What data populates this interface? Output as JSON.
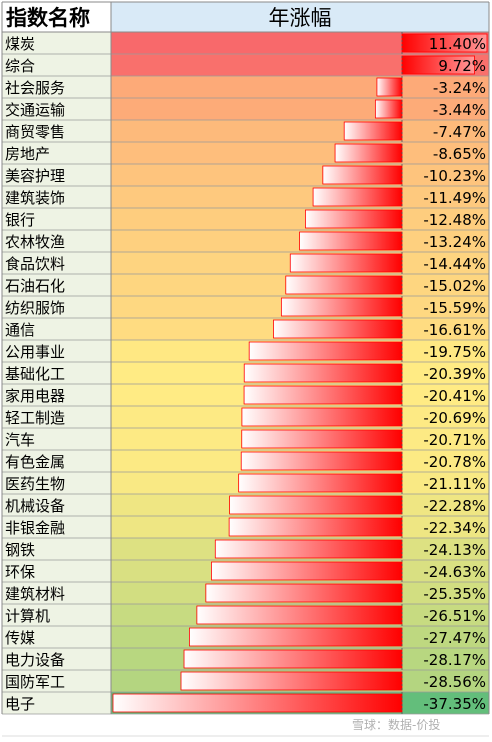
{
  "chart_data": {
    "type": "table",
    "columns": [
      "指数名称",
      "年涨幅"
    ],
    "rows": [
      {
        "name": "煤炭",
        "value": 11.4,
        "label": "11.40%"
      },
      {
        "name": "综合",
        "value": 9.72,
        "label": "9.72%"
      },
      {
        "name": "社会服务",
        "value": -3.24,
        "label": "-3.24%"
      },
      {
        "name": "交通运输",
        "value": -3.44,
        "label": "-3.44%"
      },
      {
        "name": "商贸零售",
        "value": -7.47,
        "label": "-7.47%"
      },
      {
        "name": "房地产",
        "value": -8.65,
        "label": "-8.65%"
      },
      {
        "name": "美容护理",
        "value": -10.23,
        "label": "-10.23%"
      },
      {
        "name": "建筑装饰",
        "value": -11.49,
        "label": "-11.49%"
      },
      {
        "name": "银行",
        "value": -12.48,
        "label": "-12.48%"
      },
      {
        "name": "农林牧渔",
        "value": -13.24,
        "label": "-13.24%"
      },
      {
        "name": "食品饮料",
        "value": -14.44,
        "label": "-14.44%"
      },
      {
        "name": "石油石化",
        "value": -15.02,
        "label": "-15.02%"
      },
      {
        "name": "纺织服饰",
        "value": -15.59,
        "label": "-15.59%"
      },
      {
        "name": "通信",
        "value": -16.61,
        "label": "-16.61%"
      },
      {
        "name": "公用事业",
        "value": -19.75,
        "label": "-19.75%"
      },
      {
        "name": "基础化工",
        "value": -20.39,
        "label": "-20.39%"
      },
      {
        "name": "家用电器",
        "value": -20.41,
        "label": "-20.41%"
      },
      {
        "name": "轻工制造",
        "value": -20.69,
        "label": "-20.69%"
      },
      {
        "name": "汽车",
        "value": -20.71,
        "label": "-20.71%"
      },
      {
        "name": "有色金属",
        "value": -20.78,
        "label": "-20.78%"
      },
      {
        "name": "医药生物",
        "value": -21.11,
        "label": "-21.11%"
      },
      {
        "name": "机械设备",
        "value": -22.28,
        "label": "-22.28%"
      },
      {
        "name": "非银金融",
        "value": -22.34,
        "label": "-22.34%"
      },
      {
        "name": "钢铁",
        "value": -24.13,
        "label": "-24.13%"
      },
      {
        "name": "环保",
        "value": -24.63,
        "label": "-24.63%"
      },
      {
        "name": "建筑材料",
        "value": -25.35,
        "label": "-25.35%"
      },
      {
        "name": "计算机",
        "value": -26.51,
        "label": "-26.51%"
      },
      {
        "name": "传媒",
        "value": -27.47,
        "label": "-27.47%"
      },
      {
        "name": "电力设备",
        "value": -28.17,
        "label": "-28.17%"
      },
      {
        "name": "国防军工",
        "value": -28.56,
        "label": "-28.56%"
      },
      {
        "name": "电子",
        "value": -37.35,
        "label": "-37.35%"
      }
    ],
    "bar_color": "#ff0000",
    "header_bg": "#d9eaf7"
  },
  "watermark": "雪球：数据-价投"
}
